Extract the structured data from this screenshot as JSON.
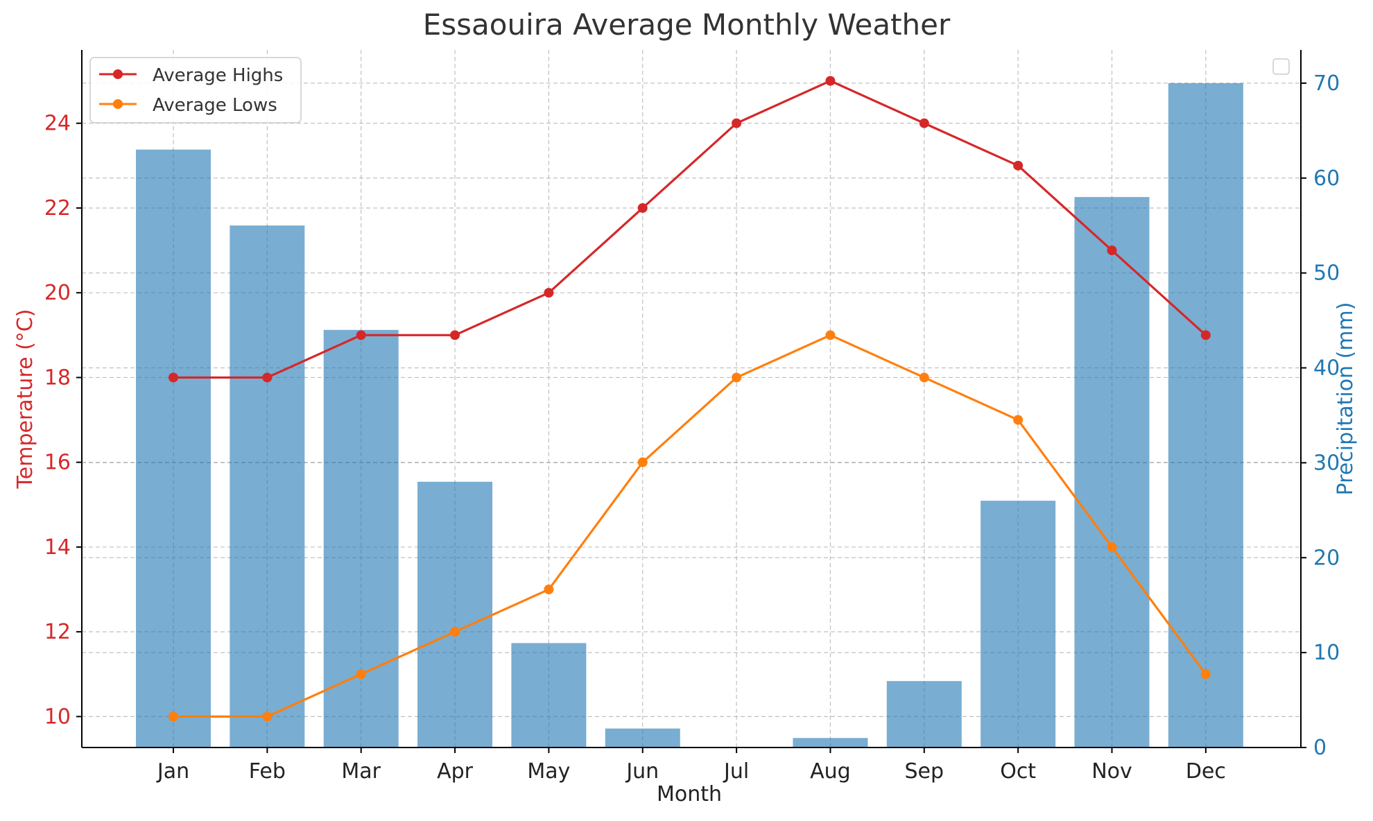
{
  "chart_data": {
    "type": "bar",
    "title": "Essaouira Average Monthly Weather",
    "xlabel": "Month",
    "ylabel_left": "Temperature (°C)",
    "ylabel_right": "Precipitation (mm)",
    "categories": [
      "Jan",
      "Feb",
      "Mar",
      "Apr",
      "May",
      "Jun",
      "Jul",
      "Aug",
      "Sep",
      "Oct",
      "Nov",
      "Dec"
    ],
    "left_axis": {
      "range": [
        9.27,
        25.73
      ],
      "ticks": [
        10,
        12,
        14,
        16,
        18,
        20,
        22,
        24
      ],
      "color": "#d62728"
    },
    "right_axis": {
      "range": [
        0,
        73.5
      ],
      "ticks": [
        0,
        10,
        20,
        30,
        40,
        50,
        60,
        70
      ],
      "color": "#1f77b4"
    },
    "bar_series": {
      "name": "Precipitation (mm)",
      "values": [
        63,
        55,
        44,
        28,
        11,
        2,
        0,
        1,
        7,
        26,
        58,
        70
      ],
      "color": "#1f77b4",
      "opacity": 0.6
    },
    "line_series": [
      {
        "name": "Average Highs",
        "values": [
          18,
          18,
          19,
          19,
          20,
          22,
          24,
          25,
          24,
          23,
          21,
          19
        ],
        "color": "#d62728"
      },
      {
        "name": "Average Lows",
        "values": [
          10,
          10,
          11,
          12,
          13,
          16,
          18,
          19,
          18,
          17,
          14,
          11
        ],
        "color": "#ff7f0e"
      }
    ],
    "grid": true,
    "legend_left": "upper-left",
    "legend_right": "upper-right (empty)"
  }
}
